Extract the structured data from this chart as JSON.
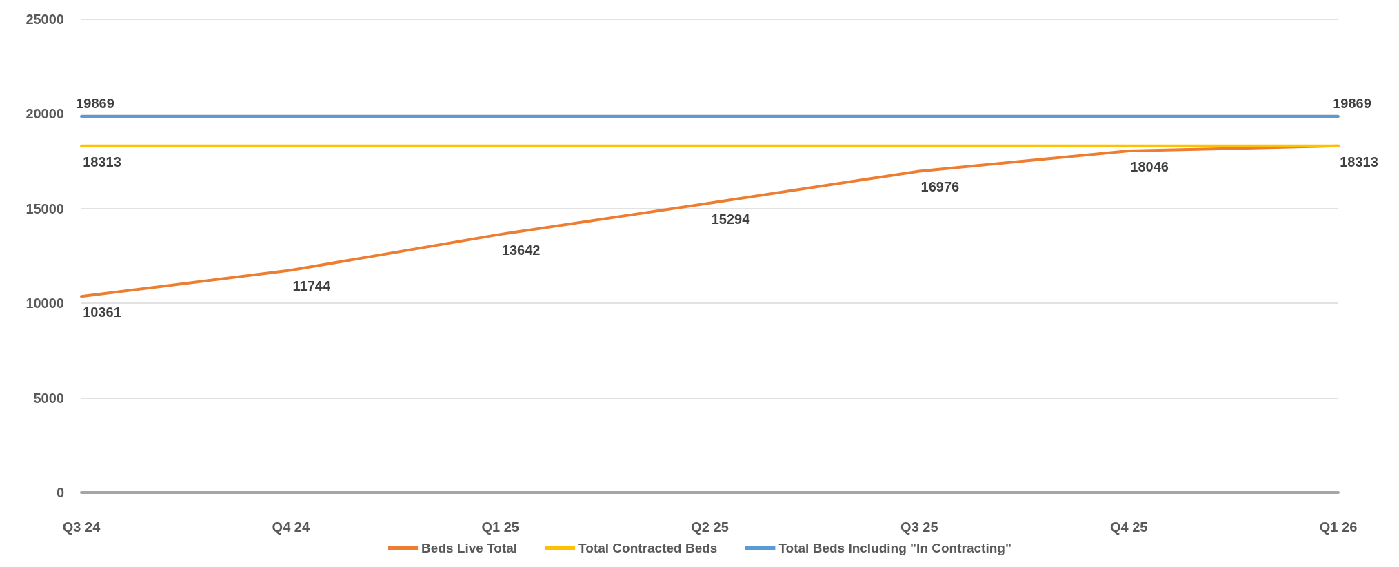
{
  "chart_data": {
    "type": "line",
    "categories": [
      "Q3 24",
      "Q4 24",
      "Q1 25",
      "Q2 25",
      "Q3 25",
      "Q4 25",
      "Q1 26"
    ],
    "series": [
      {
        "name": "Beds Live Total",
        "color": "#ed7d31",
        "values": [
          10361,
          11744,
          13642,
          15294,
          16976,
          18046,
          18313
        ],
        "value_labels": [
          "10361",
          "11744",
          "13642",
          "15294",
          "16976",
          "18046",
          null
        ]
      },
      {
        "name": "Total Contracted Beds",
        "color": "#ffc000",
        "values": [
          18313,
          18313,
          18313,
          18313,
          18313,
          18313,
          18313
        ],
        "value_labels": [
          "18313",
          null,
          null,
          null,
          null,
          null,
          "18313"
        ]
      },
      {
        "name": "Total Beds Including \"In Contracting\"",
        "color": "#5b9bd5",
        "values": [
          19869,
          19869,
          19869,
          19869,
          19869,
          19869,
          19869
        ],
        "value_labels": [
          "19869",
          null,
          null,
          null,
          null,
          null,
          "19869"
        ]
      }
    ],
    "ylim": [
      0,
      25000
    ],
    "yticks": [
      0,
      5000,
      10000,
      15000,
      20000,
      25000
    ],
    "grid": "y",
    "legend": "bottom",
    "marker": "none",
    "line_style": "solid"
  }
}
